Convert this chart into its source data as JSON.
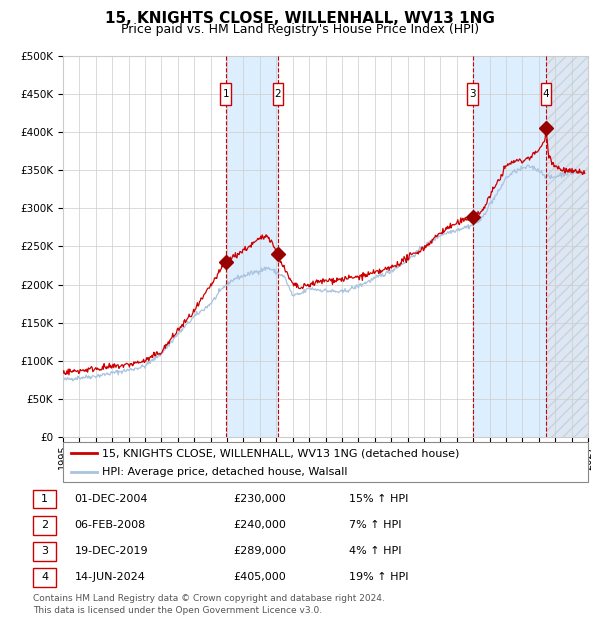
{
  "title": "15, KNIGHTS CLOSE, WILLENHALL, WV13 1NG",
  "subtitle": "Price paid vs. HM Land Registry's House Price Index (HPI)",
  "footer_line1": "Contains HM Land Registry data © Crown copyright and database right 2024.",
  "footer_line2": "This data is licensed under the Open Government Licence v3.0.",
  "legend_red": "15, KNIGHTS CLOSE, WILLENHALL, WV13 1NG (detached house)",
  "legend_blue": "HPI: Average price, detached house, Walsall",
  "transactions": [
    {
      "num": 1,
      "date": "01-DEC-2004",
      "price": 230000,
      "pct": "15%",
      "dir": "↑",
      "x_year": 2004.92
    },
    {
      "num": 2,
      "date": "06-FEB-2008",
      "price": 240000,
      "pct": "7%",
      "dir": "↑",
      "x_year": 2008.1
    },
    {
      "num": 3,
      "date": "19-DEC-2019",
      "price": 289000,
      "pct": "4%",
      "dir": "↑",
      "x_year": 2019.97
    },
    {
      "num": 4,
      "date": "14-JUN-2024",
      "price": 405000,
      "pct": "19%",
      "dir": "↑",
      "x_year": 2024.45
    }
  ],
  "ylim": [
    0,
    500000
  ],
  "yticks": [
    0,
    50000,
    100000,
    150000,
    200000,
    250000,
    300000,
    350000,
    400000,
    450000,
    500000
  ],
  "xlim_start": 1995,
  "xlim_end": 2027,
  "hpi_color": "#a8c4e0",
  "price_color": "#cc0000",
  "dot_color": "#990000",
  "vline_color": "#cc0000",
  "bg_shaded_color": "#ddeeff",
  "bg_hatch_color": "#c8d8e8",
  "grid_color": "#cccccc",
  "box_edge_color": "#cc0000",
  "title_fontsize": 11,
  "subtitle_fontsize": 9,
  "axis_fontsize": 7.5,
  "legend_fontsize": 8,
  "table_fontsize": 8,
  "footer_fontsize": 6.5
}
